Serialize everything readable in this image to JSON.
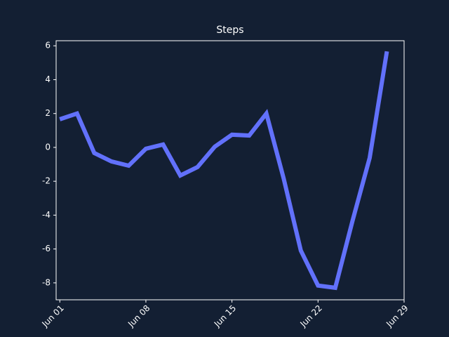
{
  "chart_data": {
    "type": "line",
    "title": "Steps",
    "x": [
      1,
      2.4,
      3.8,
      5.2,
      6.6,
      8,
      9.4,
      10.8,
      12.2,
      13.6,
      15,
      16.4,
      17.8,
      19.2,
      20.6,
      22,
      23.4,
      24.8,
      26.2,
      27.6
    ],
    "series": [
      {
        "name": "Steps",
        "color": "#6271fb",
        "values": [
          1.66,
          2.0,
          -0.33,
          -0.83,
          -1.08,
          -0.08,
          0.17,
          -1.66,
          -1.16,
          0.04,
          0.75,
          0.7,
          2.0,
          -1.82,
          -6.09,
          -8.16,
          -8.29,
          -4.35,
          -0.62,
          5.67
        ]
      }
    ],
    "xlim": [
      0.7,
      29
    ],
    "xticks": [
      {
        "value": 1,
        "label": "Jun 01"
      },
      {
        "value": 8,
        "label": "Jun 08"
      },
      {
        "value": 15,
        "label": "Jun 15"
      },
      {
        "value": 22,
        "label": "Jun 22"
      },
      {
        "value": 29,
        "label": "Jun 29"
      }
    ],
    "ylim": [
      -9,
      6.3
    ],
    "yticks": [
      6,
      4,
      2,
      0,
      -2,
      -4,
      -6,
      -8
    ],
    "grid": false
  }
}
